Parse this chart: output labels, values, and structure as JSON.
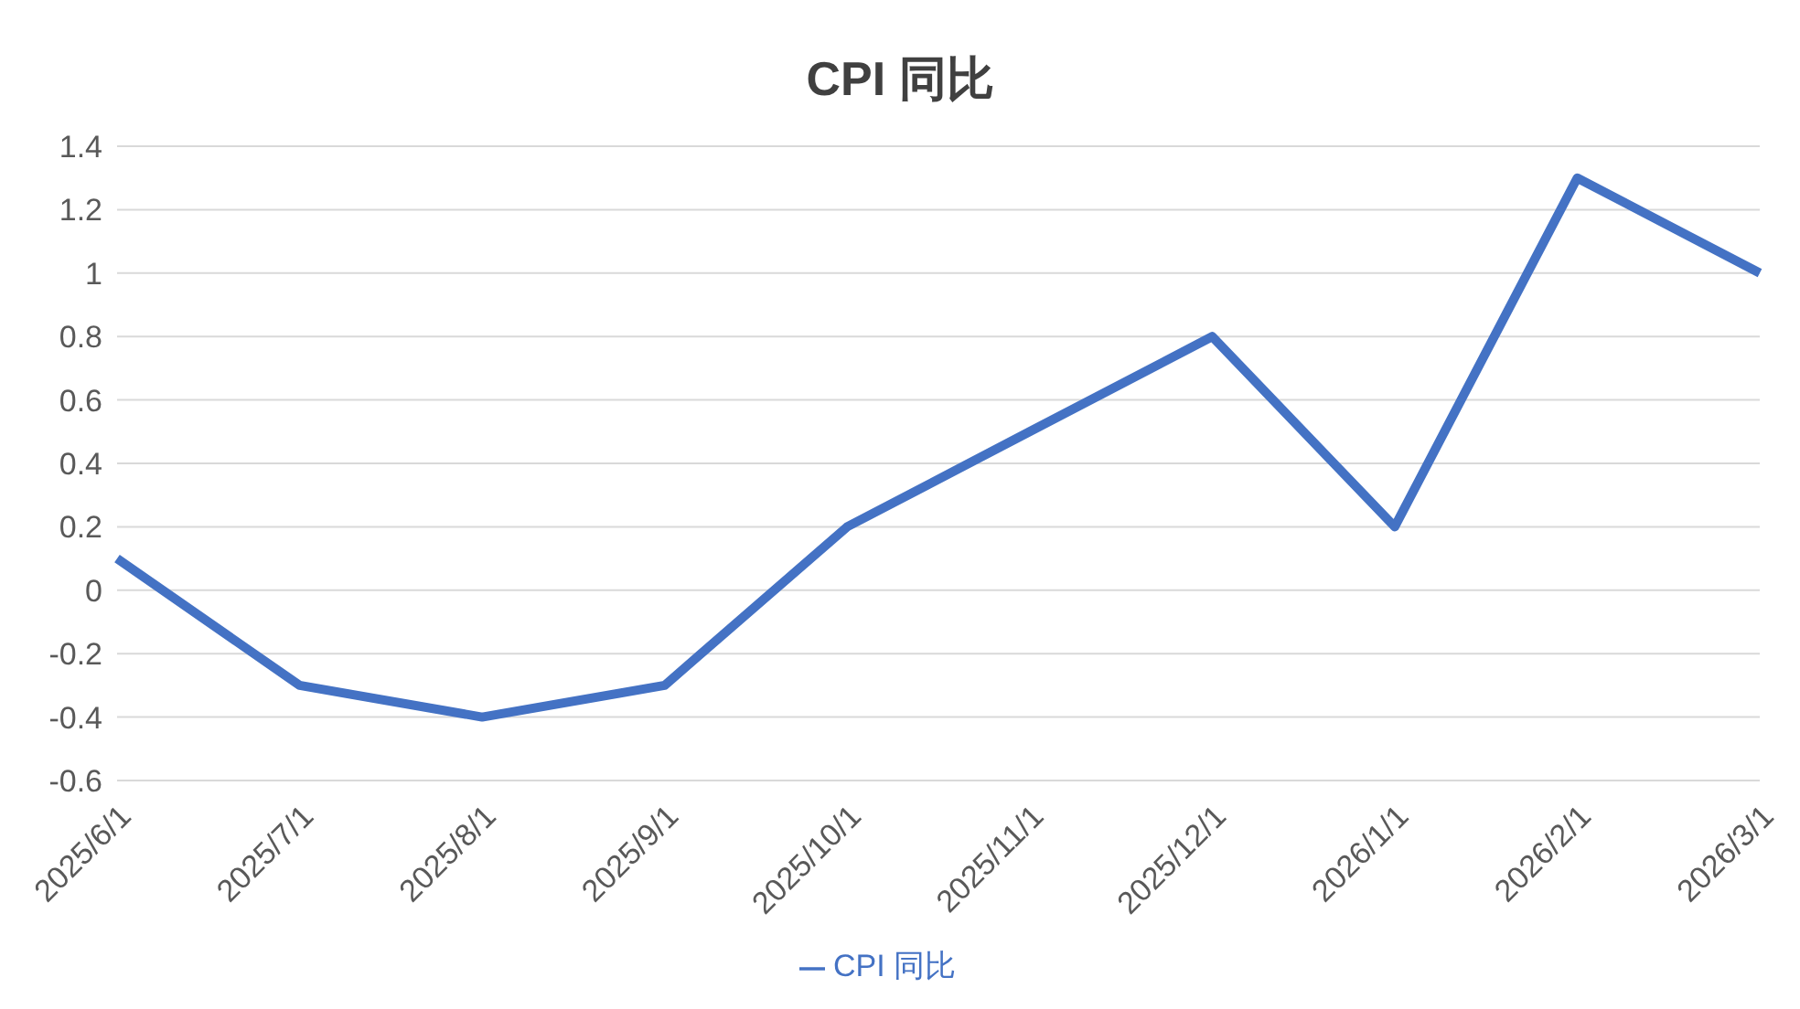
{
  "chart_data": {
    "type": "line",
    "title": "CPI 同比",
    "categories": [
      "2025/6/1",
      "2025/7/1",
      "2025/8/1",
      "2025/9/1",
      "2025/10/1",
      "2025/11/1",
      "2025/12/1",
      "2026/1/1",
      "2026/2/1",
      "2026/3/1"
    ],
    "series": [
      {
        "name": "CPI 同比",
        "color": "#4472c4",
        "values": [
          0.1,
          -0.3,
          -0.4,
          -0.3,
          0.2,
          0.5,
          0.8,
          0.2,
          1.3,
          1.0
        ]
      }
    ],
    "ylim": [
      -0.6,
      1.4
    ],
    "yticks": [
      -0.6,
      -0.4,
      -0.2,
      0,
      0.2,
      0.4,
      0.6,
      0.8,
      1,
      1.2,
      1.4
    ],
    "grid": "y",
    "legend": "bottom",
    "marker": "none",
    "line_style": "solid"
  }
}
